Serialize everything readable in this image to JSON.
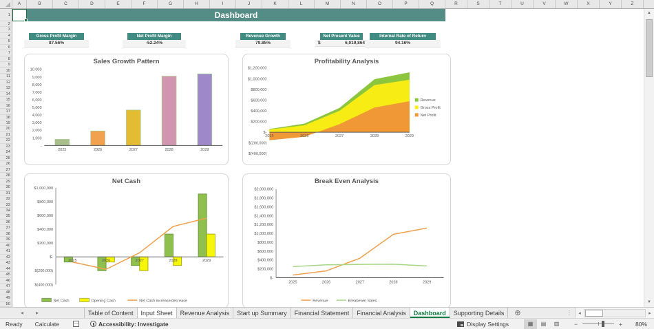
{
  "grid": {
    "columns": [
      "A",
      "B",
      "C",
      "D",
      "E",
      "F",
      "G",
      "H",
      "I",
      "J",
      "K",
      "L",
      "M",
      "N",
      "O",
      "P",
      "Q",
      "R",
      "S",
      "T",
      "U",
      "V",
      "W",
      "X",
      "Y",
      "Z"
    ],
    "row_count": 50
  },
  "title_banner": {
    "text": "Dashboard"
  },
  "kpis": [
    {
      "label": "Gross Profit Margin",
      "value": "87.56%"
    },
    {
      "label": "Net Profit Margin",
      "value": "-52.24%"
    },
    {
      "label": "Revenue Growth",
      "value": "79.85%"
    },
    {
      "label": "Net Present Value",
      "value_prefix": "$",
      "value": "6,019,864"
    },
    {
      "label": "Internal Rate of Return",
      "value": "94.16%"
    }
  ],
  "chart_data": [
    {
      "type": "bar",
      "title": "Sales Growth Pattern",
      "categories": [
        "2025",
        "2026",
        "2027",
        "2028",
        "2029"
      ],
      "ylim": [
        0,
        10000
      ],
      "ytick_values": [
        10000,
        9000,
        8000,
        7000,
        6000,
        5000,
        4000,
        3000,
        2000,
        1000,
        0
      ],
      "ytick_labels": [
        "10,000",
        "9,000",
        "8,000",
        "7,000",
        "6,000",
        "5,000",
        "4,000",
        "3,000",
        "2,000",
        "1,000",
        "-"
      ],
      "x_mode": "center",
      "xlabels_at_zero": false,
      "y_axis_line": false,
      "bar_frac": 0.4,
      "series": [
        {
          "name": "Sales",
          "kind": "bar",
          "values": [
            800,
            1900,
            4650,
            9100,
            9400
          ],
          "colors": [
            "#A9BE8B",
            "#F2A24E",
            "#E3BC34",
            "#D295B0",
            "#9E88C9"
          ],
          "stroke": "#A6C88D"
        }
      ],
      "legend": null
    },
    {
      "type": "area",
      "title": "Profitability Analysis",
      "categories": [
        "2025",
        "2026",
        "2027",
        "2028",
        "2029"
      ],
      "ylim": [
        -400000,
        1200000
      ],
      "ytick_values": [
        1200000,
        1000000,
        800000,
        600000,
        400000,
        200000,
        0,
        -200000,
        -400000
      ],
      "ytick_labels": [
        "$1,200,000",
        "$1,000,000",
        "$800,000",
        "$600,000",
        "$400,000",
        "$200,000",
        "$-",
        "$(200,000)",
        "$(400,000)"
      ],
      "x_mode": "edge",
      "xlabels_at_zero": true,
      "y_axis_line": false,
      "series": [
        {
          "name": "Revenue",
          "kind": "area",
          "color": "#8CC63F",
          "values": [
            60000,
            160000,
            455000,
            990000,
            1120000
          ]
        },
        {
          "name": "Gross Profit",
          "kind": "area",
          "color": "#F8EC15",
          "values": [
            50000,
            130000,
            400000,
            880000,
            980000
          ]
        },
        {
          "name": "Net Profit",
          "kind": "area",
          "color": "#EF9835",
          "values": [
            -150000,
            -85000,
            150000,
            460000,
            580000
          ]
        }
      ],
      "legend": {
        "position": "right",
        "items": [
          {
            "label": "Revenue",
            "color": "#8CC63F",
            "marker": "square"
          },
          {
            "label": "Gross Profit",
            "color": "#F8EC15",
            "marker": "square"
          },
          {
            "label": "Net Profit",
            "color": "#EF9835",
            "marker": "square"
          }
        ]
      }
    },
    {
      "type": "bar-line",
      "title": "Net Cash",
      "categories": [
        "2025",
        "2026",
        "2027",
        "2028",
        "2029"
      ],
      "ylim": [
        -400000,
        1000000
      ],
      "ytick_values": [
        1000000,
        800000,
        600000,
        400000,
        200000,
        0,
        -200000,
        -400000
      ],
      "ytick_labels": [
        "$1,000,000",
        "$800,000",
        "$600,000",
        "$400,000",
        "$200,000",
        "$-",
        "$(200,000)",
        "$(400,000)"
      ],
      "x_mode": "center",
      "xlabels_at_zero": true,
      "y_axis_line": true,
      "bar_frac": 0.5,
      "series": [
        {
          "name": "Net Cash",
          "kind": "bar",
          "color": "#8FBF4D",
          "stroke": "#5E8F2E",
          "values": [
            -75000,
            -200000,
            -125000,
            330000,
            910000
          ]
        },
        {
          "name": "Opening Cash",
          "kind": "bar",
          "color": "#F6F60B",
          "stroke": "#9A9A00",
          "values": [
            0,
            -75000,
            -200000,
            -125000,
            330000
          ]
        },
        {
          "name": "Net Cash increase/decrease",
          "kind": "line",
          "color": "#F0A04B",
          "values": [
            -75000,
            -180000,
            60000,
            440000,
            560000
          ]
        }
      ],
      "legend": {
        "position": "bottom",
        "items": [
          {
            "label": "Net Cash",
            "color": "#8FBF4D",
            "marker": "square"
          },
          {
            "label": "Opening Cash",
            "color": "#F6F60B",
            "marker": "square"
          },
          {
            "label": "Net Cash increase/decrease",
            "color": "#F0A04B",
            "marker": "line"
          }
        ]
      }
    },
    {
      "type": "line",
      "title": "Break Even Analysis",
      "categories": [
        "2025",
        "2026",
        "2027",
        "2028",
        "2029"
      ],
      "ylim": [
        0,
        2000000
      ],
      "ytick_values": [
        2000000,
        1800000,
        1600000,
        1400000,
        1200000,
        1000000,
        800000,
        600000,
        400000,
        200000,
        0
      ],
      "ytick_labels": [
        "$2,000,000",
        "$1,800,000",
        "$1,600,000",
        "$1,400,000",
        "$1,200,000",
        "$1,000,000",
        "$800,000",
        "$600,000",
        "$400,000",
        "$200,000",
        "$-"
      ],
      "x_mode": "center",
      "xlabels_at_zero": false,
      "y_axis_line": true,
      "series": [
        {
          "name": "Revenue",
          "kind": "line",
          "color": "#F0A04B",
          "values": [
            60000,
            155000,
            440000,
            980000,
            1120000
          ]
        },
        {
          "name": "Breakeven Sales",
          "kind": "line",
          "color": "#A6D785",
          "values": [
            250000,
            290000,
            300000,
            305000,
            265000
          ]
        }
      ],
      "legend": {
        "position": "bottom",
        "items": [
          {
            "label": "Revenue",
            "color": "#F0A04B",
            "marker": "line"
          },
          {
            "label": "Breakeven Sales",
            "color": "#A6D785",
            "marker": "line"
          }
        ]
      }
    }
  ],
  "sheet_tabs": {
    "tabs": [
      {
        "label": "Table of Content",
        "state": "normal"
      },
      {
        "label": "Input Sheet",
        "state": "selected"
      },
      {
        "label": "Revenue Analysis",
        "state": "normal"
      },
      {
        "label": "Start up Summary",
        "state": "normal"
      },
      {
        "label": "Financial Statement",
        "state": "normal"
      },
      {
        "label": "Financial Analysis",
        "state": "normal"
      },
      {
        "label": "Dashboard",
        "state": "active"
      },
      {
        "label": "Supporting Details",
        "state": "normal"
      }
    ]
  },
  "icons": {
    "tab_nav_left": "◂",
    "tab_nav_right": "▸",
    "add_sheet": "⊕",
    "scroll_up": "▲",
    "scroll_down": "▼",
    "scroll_left": "◂",
    "scroll_right": "▸",
    "view_normal": "▦",
    "view_page_layout": "▤",
    "view_page_break": "▥",
    "zoom_out": "−",
    "zoom_in": "+",
    "tab_dots": "⋮"
  },
  "status_bar": {
    "ready": "Ready",
    "calculate": "Calculate",
    "accessibility": "Accessibility: Investigate",
    "display_settings": "Display Settings",
    "zoom_level": "80%"
  },
  "colors": {
    "banner_teal": "#548D86",
    "kpi_chip_teal": "#418C82",
    "active_tab_green": "#107C41"
  }
}
